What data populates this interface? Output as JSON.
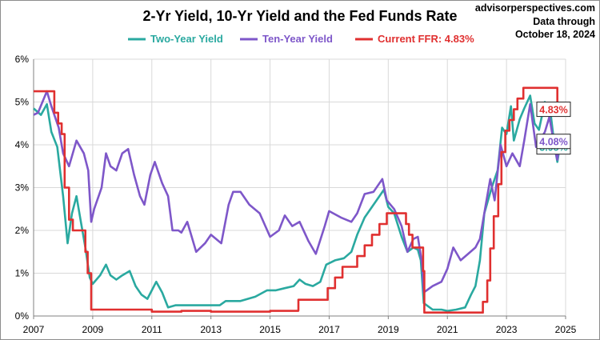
{
  "title": "2-Yr Yield, 10-Yr Yield and the Fed Funds Rate",
  "source": {
    "site": "advisorperspectives.com",
    "line1": "Data through",
    "line2": "October 18, 2024"
  },
  "chart_data": {
    "type": "line",
    "title": "2-Yr Yield, 10-Yr Yield and the Fed Funds Rate",
    "xlabel": "",
    "ylabel": "",
    "xlim": [
      2007,
      2025
    ],
    "ylim": [
      0,
      6
    ],
    "x_ticks": [
      "2007",
      "2009",
      "2011",
      "2013",
      "2015",
      "2017",
      "2019",
      "2021",
      "2023",
      "2025"
    ],
    "y_ticks": [
      "0%",
      "1%",
      "2%",
      "3%",
      "4%",
      "5%",
      "6%"
    ],
    "grid": true,
    "legend_position": "top",
    "series": [
      {
        "name": "Two-Year Yield",
        "color": "#2aa9a0",
        "end_label": "3.95%",
        "points": [
          [
            2007.0,
            4.85
          ],
          [
            2007.25,
            4.7
          ],
          [
            2007.45,
            4.95
          ],
          [
            2007.6,
            4.3
          ],
          [
            2007.8,
            3.95
          ],
          [
            2008.0,
            2.8
          ],
          [
            2008.15,
            1.7
          ],
          [
            2008.3,
            2.4
          ],
          [
            2008.45,
            2.8
          ],
          [
            2008.6,
            2.2
          ],
          [
            2008.75,
            1.6
          ],
          [
            2008.9,
            0.9
          ],
          [
            2009.0,
            0.75
          ],
          [
            2009.25,
            0.95
          ],
          [
            2009.45,
            1.2
          ],
          [
            2009.6,
            0.95
          ],
          [
            2009.8,
            0.85
          ],
          [
            2010.0,
            0.95
          ],
          [
            2010.25,
            1.05
          ],
          [
            2010.45,
            0.7
          ],
          [
            2010.65,
            0.5
          ],
          [
            2010.85,
            0.4
          ],
          [
            2011.0,
            0.6
          ],
          [
            2011.15,
            0.8
          ],
          [
            2011.35,
            0.55
          ],
          [
            2011.55,
            0.2
          ],
          [
            2011.8,
            0.25
          ],
          [
            2012.0,
            0.25
          ],
          [
            2012.5,
            0.25
          ],
          [
            2013.0,
            0.25
          ],
          [
            2013.3,
            0.25
          ],
          [
            2013.5,
            0.35
          ],
          [
            2013.75,
            0.35
          ],
          [
            2014.0,
            0.35
          ],
          [
            2014.5,
            0.45
          ],
          [
            2014.9,
            0.6
          ],
          [
            2015.2,
            0.6
          ],
          [
            2015.5,
            0.65
          ],
          [
            2015.8,
            0.7
          ],
          [
            2016.0,
            0.85
          ],
          [
            2016.2,
            0.75
          ],
          [
            2016.45,
            0.7
          ],
          [
            2016.7,
            0.8
          ],
          [
            2016.9,
            1.2
          ],
          [
            2017.2,
            1.3
          ],
          [
            2017.5,
            1.35
          ],
          [
            2017.75,
            1.5
          ],
          [
            2017.95,
            1.9
          ],
          [
            2018.2,
            2.3
          ],
          [
            2018.5,
            2.6
          ],
          [
            2018.85,
            2.95
          ],
          [
            2019.0,
            2.55
          ],
          [
            2019.2,
            2.4
          ],
          [
            2019.45,
            1.85
          ],
          [
            2019.65,
            1.5
          ],
          [
            2019.85,
            1.6
          ],
          [
            2020.0,
            1.55
          ],
          [
            2020.1,
            1.3
          ],
          [
            2020.2,
            0.3
          ],
          [
            2020.5,
            0.15
          ],
          [
            2020.8,
            0.15
          ],
          [
            2021.0,
            0.12
          ],
          [
            2021.3,
            0.15
          ],
          [
            2021.6,
            0.2
          ],
          [
            2021.8,
            0.5
          ],
          [
            2021.95,
            0.7
          ],
          [
            2022.1,
            1.3
          ],
          [
            2022.25,
            2.4
          ],
          [
            2022.5,
            3.0
          ],
          [
            2022.7,
            3.4
          ],
          [
            2022.85,
            4.4
          ],
          [
            2023.0,
            4.25
          ],
          [
            2023.15,
            4.9
          ],
          [
            2023.25,
            4.1
          ],
          [
            2023.45,
            4.6
          ],
          [
            2023.6,
            4.85
          ],
          [
            2023.8,
            5.15
          ],
          [
            2023.95,
            4.5
          ],
          [
            2024.1,
            4.35
          ],
          [
            2024.3,
            5.0
          ],
          [
            2024.5,
            4.7
          ],
          [
            2024.62,
            4.0
          ],
          [
            2024.72,
            3.6
          ],
          [
            2024.8,
            3.95
          ]
        ]
      },
      {
        "name": "Ten-Year Yield",
        "color": "#7e57c9",
        "end_label": "4.08%",
        "points": [
          [
            2007.0,
            4.7
          ],
          [
            2007.15,
            4.75
          ],
          [
            2007.45,
            5.25
          ],
          [
            2007.6,
            4.9
          ],
          [
            2007.85,
            4.4
          ],
          [
            2008.0,
            3.8
          ],
          [
            2008.2,
            3.5
          ],
          [
            2008.45,
            4.1
          ],
          [
            2008.7,
            3.8
          ],
          [
            2008.85,
            3.4
          ],
          [
            2008.95,
            2.2
          ],
          [
            2009.05,
            2.5
          ],
          [
            2009.3,
            3.0
          ],
          [
            2009.45,
            3.8
          ],
          [
            2009.6,
            3.5
          ],
          [
            2009.8,
            3.4
          ],
          [
            2010.0,
            3.8
          ],
          [
            2010.2,
            3.9
          ],
          [
            2010.4,
            3.3
          ],
          [
            2010.6,
            2.8
          ],
          [
            2010.75,
            2.6
          ],
          [
            2010.95,
            3.3
          ],
          [
            2011.1,
            3.6
          ],
          [
            2011.35,
            3.1
          ],
          [
            2011.55,
            2.8
          ],
          [
            2011.7,
            2.0
          ],
          [
            2011.9,
            2.0
          ],
          [
            2012.0,
            1.95
          ],
          [
            2012.2,
            2.2
          ],
          [
            2012.5,
            1.5
          ],
          [
            2012.8,
            1.7
          ],
          [
            2013.0,
            1.9
          ],
          [
            2013.35,
            1.7
          ],
          [
            2013.6,
            2.6
          ],
          [
            2013.75,
            2.9
          ],
          [
            2014.0,
            2.9
          ],
          [
            2014.3,
            2.6
          ],
          [
            2014.65,
            2.4
          ],
          [
            2015.0,
            1.85
          ],
          [
            2015.3,
            2.0
          ],
          [
            2015.5,
            2.35
          ],
          [
            2015.75,
            2.1
          ],
          [
            2016.0,
            2.2
          ],
          [
            2016.3,
            1.75
          ],
          [
            2016.55,
            1.45
          ],
          [
            2016.85,
            2.1
          ],
          [
            2017.0,
            2.45
          ],
          [
            2017.4,
            2.3
          ],
          [
            2017.75,
            2.2
          ],
          [
            2017.95,
            2.4
          ],
          [
            2018.2,
            2.85
          ],
          [
            2018.5,
            2.9
          ],
          [
            2018.8,
            3.2
          ],
          [
            2018.95,
            2.7
          ],
          [
            2019.2,
            2.5
          ],
          [
            2019.45,
            2.1
          ],
          [
            2019.65,
            1.5
          ],
          [
            2019.85,
            1.8
          ],
          [
            2020.0,
            1.85
          ],
          [
            2020.15,
            1.2
          ],
          [
            2020.2,
            0.55
          ],
          [
            2020.5,
            0.7
          ],
          [
            2020.8,
            0.8
          ],
          [
            2021.0,
            1.1
          ],
          [
            2021.2,
            1.6
          ],
          [
            2021.45,
            1.3
          ],
          [
            2021.7,
            1.45
          ],
          [
            2021.95,
            1.6
          ],
          [
            2022.1,
            1.8
          ],
          [
            2022.3,
            2.6
          ],
          [
            2022.45,
            3.2
          ],
          [
            2022.6,
            2.7
          ],
          [
            2022.8,
            4.0
          ],
          [
            2023.0,
            3.5
          ],
          [
            2023.2,
            3.8
          ],
          [
            2023.45,
            3.5
          ],
          [
            2023.6,
            4.1
          ],
          [
            2023.8,
            4.95
          ],
          [
            2024.0,
            3.95
          ],
          [
            2024.3,
            4.3
          ],
          [
            2024.45,
            4.65
          ],
          [
            2024.65,
            3.85
          ],
          [
            2024.72,
            3.65
          ],
          [
            2024.8,
            4.08
          ]
        ]
      },
      {
        "name": "Current FFR: 4.83%",
        "color": "#e03030",
        "end_label": "4.83%",
        "points": [
          [
            2007.0,
            5.25
          ],
          [
            2007.6,
            5.25
          ],
          [
            2007.7,
            4.75
          ],
          [
            2007.83,
            4.5
          ],
          [
            2007.95,
            4.25
          ],
          [
            2008.05,
            3.0
          ],
          [
            2008.2,
            2.25
          ],
          [
            2008.33,
            2.0
          ],
          [
            2008.75,
            1.5
          ],
          [
            2008.83,
            1.0
          ],
          [
            2008.95,
            0.15
          ],
          [
            2009.2,
            0.15
          ],
          [
            2010.0,
            0.15
          ],
          [
            2011.0,
            0.1
          ],
          [
            2012.0,
            0.12
          ],
          [
            2013.0,
            0.1
          ],
          [
            2014.0,
            0.1
          ],
          [
            2015.0,
            0.12
          ],
          [
            2015.95,
            0.13
          ],
          [
            2015.96,
            0.38
          ],
          [
            2016.9,
            0.38
          ],
          [
            2016.95,
            0.65
          ],
          [
            2017.2,
            0.9
          ],
          [
            2017.45,
            1.15
          ],
          [
            2017.95,
            1.4
          ],
          [
            2018.2,
            1.65
          ],
          [
            2018.45,
            1.9
          ],
          [
            2018.7,
            2.15
          ],
          [
            2018.95,
            2.4
          ],
          [
            2019.55,
            2.4
          ],
          [
            2019.6,
            2.15
          ],
          [
            2019.7,
            1.9
          ],
          [
            2019.82,
            1.6
          ],
          [
            2020.15,
            1.6
          ],
          [
            2020.18,
            1.05
          ],
          [
            2020.22,
            0.08
          ],
          [
            2021.0,
            0.08
          ],
          [
            2022.18,
            0.08
          ],
          [
            2022.2,
            0.33
          ],
          [
            2022.35,
            0.83
          ],
          [
            2022.45,
            1.58
          ],
          [
            2022.57,
            2.33
          ],
          [
            2022.72,
            3.08
          ],
          [
            2022.83,
            3.83
          ],
          [
            2022.96,
            4.33
          ],
          [
            2023.1,
            4.58
          ],
          [
            2023.25,
            4.83
          ],
          [
            2023.37,
            5.08
          ],
          [
            2023.57,
            5.33
          ],
          [
            2024.7,
            5.33
          ],
          [
            2024.72,
            4.83
          ],
          [
            2024.8,
            4.83
          ]
        ]
      }
    ]
  }
}
